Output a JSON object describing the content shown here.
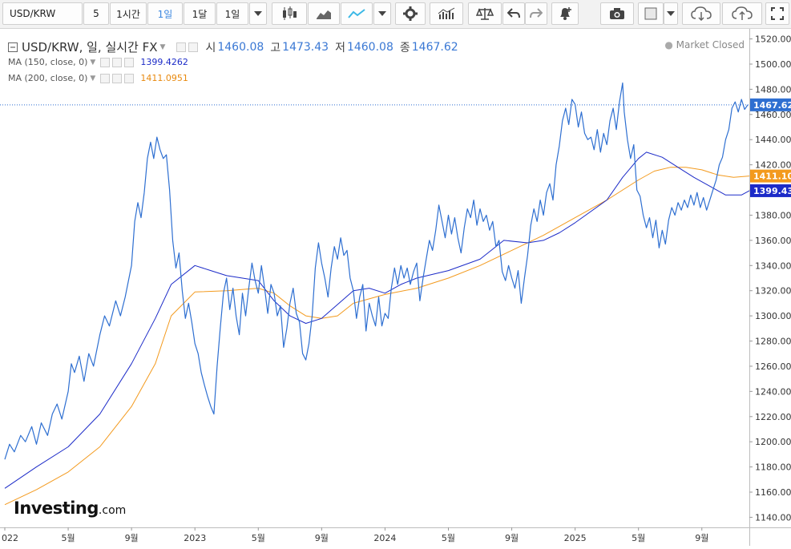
{
  "toolbar": {
    "symbol": "USD/KRW",
    "interval_5": "5",
    "interval_1h": "1시간",
    "interval_1d": "1일",
    "interval_1mo": "1달",
    "range": "1일"
  },
  "legend": {
    "title": "USD/KRW, 일, 실시간 FX",
    "open_label": "시",
    "open": "1460.08",
    "high_label": "고",
    "high": "1473.43",
    "low_label": "저",
    "low": "1460.08",
    "close_label": "종",
    "close": "1467.62",
    "market_status": "Market Closed",
    "ma150_label": "MA (150, close, 0)",
    "ma150_value": "1399.4262",
    "ma200_label": "MA (200, close, 0)",
    "ma200_value": "1411.0951"
  },
  "colors": {
    "price": "#2e6fd1",
    "ma150": "#1c2bc8",
    "ma200": "#f39a1e",
    "price_tag": "#2e6fd1",
    "ma200_tag": "#f39a1e",
    "ma150_tag": "#1c2bc8"
  },
  "logo": {
    "brand": "Investing",
    "suffix": ".com"
  },
  "chart_data": {
    "type": "line",
    "title": "USD/KRW, 일, 실시간 FX",
    "ylim": [
      1132,
      1528
    ],
    "y_ticks": [
      1140,
      1160,
      1180,
      1200,
      1220,
      1240,
      1260,
      1280,
      1300,
      1320,
      1340,
      1360,
      1380,
      1400,
      1420,
      1440,
      1460,
      1480,
      1500,
      1520
    ],
    "x_ticks": [
      {
        "t": 0,
        "label": "022"
      },
      {
        "t": 4,
        "label": "5월"
      },
      {
        "t": 8,
        "label": "9월"
      },
      {
        "t": 12,
        "label": "2023"
      },
      {
        "t": 16,
        "label": "5월"
      },
      {
        "t": 20,
        "label": "9월"
      },
      {
        "t": 24,
        "label": "2024"
      },
      {
        "t": 28,
        "label": "5월"
      },
      {
        "t": 32,
        "label": "9월"
      },
      {
        "t": 36,
        "label": "2025"
      },
      {
        "t": 40,
        "label": "5월"
      },
      {
        "t": 44,
        "label": "9월"
      }
    ],
    "xlim": [
      0,
      47.3
    ],
    "last_close_tag": "1467.62",
    "ma200_tag": "1411.10",
    "ma150_tag": "1399.43",
    "series": [
      {
        "name": "USD/KRW",
        "points": [
          [
            0,
            1186
          ],
          [
            0.3,
            1198
          ],
          [
            0.6,
            1192
          ],
          [
            1,
            1205
          ],
          [
            1.3,
            1200
          ],
          [
            1.7,
            1212
          ],
          [
            2,
            1198
          ],
          [
            2.3,
            1215
          ],
          [
            2.7,
            1205
          ],
          [
            3,
            1222
          ],
          [
            3.3,
            1230
          ],
          [
            3.6,
            1218
          ],
          [
            4,
            1240
          ],
          [
            4.2,
            1262
          ],
          [
            4.4,
            1255
          ],
          [
            4.7,
            1268
          ],
          [
            5,
            1248
          ],
          [
            5.3,
            1270
          ],
          [
            5.6,
            1260
          ],
          [
            6,
            1285
          ],
          [
            6.3,
            1300
          ],
          [
            6.6,
            1292
          ],
          [
            7,
            1312
          ],
          [
            7.3,
            1300
          ],
          [
            7.6,
            1315
          ],
          [
            8,
            1340
          ],
          [
            8.2,
            1375
          ],
          [
            8.4,
            1390
          ],
          [
            8.6,
            1378
          ],
          [
            8.8,
            1398
          ],
          [
            9,
            1425
          ],
          [
            9.2,
            1438
          ],
          [
            9.4,
            1425
          ],
          [
            9.6,
            1442
          ],
          [
            9.8,
            1432
          ],
          [
            10,
            1425
          ],
          [
            10.2,
            1428
          ],
          [
            10.4,
            1400
          ],
          [
            10.6,
            1360
          ],
          [
            10.8,
            1338
          ],
          [
            11,
            1350
          ],
          [
            11.2,
            1320
          ],
          [
            11.4,
            1298
          ],
          [
            11.6,
            1310
          ],
          [
            11.8,
            1295
          ],
          [
            12,
            1278
          ],
          [
            12.2,
            1270
          ],
          [
            12.4,
            1255
          ],
          [
            12.6,
            1245
          ],
          [
            12.8,
            1236
          ],
          [
            13,
            1228
          ],
          [
            13.2,
            1222
          ],
          [
            13.4,
            1260
          ],
          [
            13.6,
            1290
          ],
          [
            13.8,
            1318
          ],
          [
            14,
            1330
          ],
          [
            14.2,
            1305
          ],
          [
            14.4,
            1322
          ],
          [
            14.6,
            1300
          ],
          [
            14.8,
            1285
          ],
          [
            15,
            1318
          ],
          [
            15.2,
            1300
          ],
          [
            15.4,
            1322
          ],
          [
            15.6,
            1342
          ],
          [
            15.8,
            1328
          ],
          [
            16,
            1318
          ],
          [
            16.2,
            1340
          ],
          [
            16.4,
            1322
          ],
          [
            16.6,
            1302
          ],
          [
            16.8,
            1325
          ],
          [
            17,
            1318
          ],
          [
            17.2,
            1300
          ],
          [
            17.4,
            1308
          ],
          [
            17.6,
            1275
          ],
          [
            17.8,
            1290
          ],
          [
            18,
            1310
          ],
          [
            18.2,
            1322
          ],
          [
            18.4,
            1302
          ],
          [
            18.6,
            1295
          ],
          [
            18.8,
            1270
          ],
          [
            19,
            1265
          ],
          [
            19.2,
            1278
          ],
          [
            19.4,
            1300
          ],
          [
            19.6,
            1338
          ],
          [
            19.8,
            1358
          ],
          [
            20,
            1342
          ],
          [
            20.2,
            1330
          ],
          [
            20.4,
            1315
          ],
          [
            20.6,
            1338
          ],
          [
            20.8,
            1355
          ],
          [
            21,
            1345
          ],
          [
            21.2,
            1362
          ],
          [
            21.4,
            1348
          ],
          [
            21.6,
            1352
          ],
          [
            21.8,
            1330
          ],
          [
            22,
            1320
          ],
          [
            22.2,
            1298
          ],
          [
            22.4,
            1315
          ],
          [
            22.6,
            1325
          ],
          [
            22.8,
            1288
          ],
          [
            23,
            1310
          ],
          [
            23.2,
            1300
          ],
          [
            23.4,
            1292
          ],
          [
            23.6,
            1315
          ],
          [
            23.8,
            1292
          ],
          [
            24,
            1302
          ],
          [
            24.2,
            1298
          ],
          [
            24.4,
            1322
          ],
          [
            24.6,
            1338
          ],
          [
            24.8,
            1325
          ],
          [
            25,
            1340
          ],
          [
            25.2,
            1330
          ],
          [
            25.4,
            1338
          ],
          [
            25.6,
            1325
          ],
          [
            25.8,
            1335
          ],
          [
            26,
            1342
          ],
          [
            26.2,
            1312
          ],
          [
            26.4,
            1330
          ],
          [
            26.6,
            1345
          ],
          [
            26.8,
            1360
          ],
          [
            27,
            1352
          ],
          [
            27.2,
            1368
          ],
          [
            27.4,
            1388
          ],
          [
            27.6,
            1375
          ],
          [
            27.8,
            1362
          ],
          [
            28,
            1380
          ],
          [
            28.2,
            1365
          ],
          [
            28.4,
            1378
          ],
          [
            28.6,
            1362
          ],
          [
            28.8,
            1350
          ],
          [
            29,
            1370
          ],
          [
            29.2,
            1385
          ],
          [
            29.4,
            1378
          ],
          [
            29.6,
            1392
          ],
          [
            29.8,
            1372
          ],
          [
            30,
            1385
          ],
          [
            30.2,
            1375
          ],
          [
            30.4,
            1380
          ],
          [
            30.6,
            1368
          ],
          [
            30.8,
            1375
          ],
          [
            31,
            1355
          ],
          [
            31.2,
            1360
          ],
          [
            31.4,
            1335
          ],
          [
            31.6,
            1328
          ],
          [
            31.8,
            1340
          ],
          [
            32,
            1330
          ],
          [
            32.2,
            1322
          ],
          [
            32.4,
            1336
          ],
          [
            32.6,
            1310
          ],
          [
            32.8,
            1330
          ],
          [
            33,
            1348
          ],
          [
            33.2,
            1372
          ],
          [
            33.4,
            1385
          ],
          [
            33.6,
            1375
          ],
          [
            33.8,
            1392
          ],
          [
            34,
            1380
          ],
          [
            34.2,
            1398
          ],
          [
            34.4,
            1405
          ],
          [
            34.6,
            1392
          ],
          [
            34.8,
            1420
          ],
          [
            35,
            1435
          ],
          [
            35.2,
            1455
          ],
          [
            35.4,
            1465
          ],
          [
            35.6,
            1452
          ],
          [
            35.8,
            1472
          ],
          [
            36,
            1468
          ],
          [
            36.2,
            1450
          ],
          [
            36.4,
            1462
          ],
          [
            36.6,
            1445
          ],
          [
            36.8,
            1440
          ],
          [
            37,
            1442
          ],
          [
            37.2,
            1432
          ],
          [
            37.4,
            1448
          ],
          [
            37.6,
            1430
          ],
          [
            37.8,
            1445
          ],
          [
            38,
            1436
          ],
          [
            38.2,
            1455
          ],
          [
            38.4,
            1465
          ],
          [
            38.6,
            1448
          ],
          [
            38.8,
            1470
          ],
          [
            39,
            1485
          ],
          [
            39.1,
            1462
          ],
          [
            39.3,
            1440
          ],
          [
            39.5,
            1425
          ],
          [
            39.7,
            1436
          ],
          [
            39.9,
            1400
          ],
          [
            40.1,
            1395
          ],
          [
            40.3,
            1380
          ],
          [
            40.5,
            1370
          ],
          [
            40.7,
            1378
          ],
          [
            40.9,
            1362
          ],
          [
            41.1,
            1376
          ],
          [
            41.3,
            1354
          ],
          [
            41.5,
            1368
          ],
          [
            41.7,
            1357
          ],
          [
            41.9,
            1376
          ],
          [
            42.1,
            1386
          ],
          [
            42.3,
            1380
          ],
          [
            42.5,
            1390
          ],
          [
            42.7,
            1384
          ],
          [
            42.9,
            1392
          ],
          [
            43.1,
            1386
          ],
          [
            43.3,
            1396
          ],
          [
            43.5,
            1388
          ],
          [
            43.7,
            1398
          ],
          [
            43.9,
            1386
          ],
          [
            44.1,
            1394
          ],
          [
            44.3,
            1384
          ],
          [
            44.5,
            1392
          ],
          [
            44.7,
            1400
          ],
          [
            44.9,
            1408
          ],
          [
            45.1,
            1420
          ],
          [
            45.3,
            1426
          ],
          [
            45.5,
            1440
          ],
          [
            45.7,
            1448
          ],
          [
            45.9,
            1465
          ],
          [
            46.1,
            1470
          ],
          [
            46.3,
            1462
          ],
          [
            46.5,
            1472
          ],
          [
            46.7,
            1464
          ],
          [
            46.9,
            1467.62
          ]
        ]
      },
      {
        "name": "MA (150, close, 0)",
        "points": [
          [
            0,
            1163
          ],
          [
            2,
            1180
          ],
          [
            4,
            1196
          ],
          [
            6,
            1222
          ],
          [
            8,
            1262
          ],
          [
            9.5,
            1298
          ],
          [
            10.5,
            1325
          ],
          [
            12,
            1340
          ],
          [
            13,
            1336
          ],
          [
            14,
            1332
          ],
          [
            16,
            1328
          ],
          [
            17,
            1312
          ],
          [
            18,
            1300
          ],
          [
            19,
            1294
          ],
          [
            20,
            1298
          ],
          [
            22,
            1320
          ],
          [
            23,
            1322
          ],
          [
            24,
            1318
          ],
          [
            25,
            1325
          ],
          [
            26,
            1330
          ],
          [
            28,
            1336
          ],
          [
            30,
            1345
          ],
          [
            31.5,
            1360
          ],
          [
            33,
            1358
          ],
          [
            34,
            1360
          ],
          [
            35,
            1366
          ],
          [
            36,
            1374
          ],
          [
            38,
            1392
          ],
          [
            39,
            1410
          ],
          [
            40,
            1425
          ],
          [
            40.5,
            1430
          ],
          [
            41.5,
            1426
          ],
          [
            42.5,
            1418
          ],
          [
            43.5,
            1410
          ],
          [
            44.5,
            1403
          ],
          [
            45.5,
            1396
          ],
          [
            46.5,
            1396
          ],
          [
            47,
            1399.43
          ]
        ]
      },
      {
        "name": "MA (200, close, 0)",
        "points": [
          [
            0,
            1150
          ],
          [
            2,
            1162
          ],
          [
            4,
            1176
          ],
          [
            6,
            1196
          ],
          [
            8,
            1228
          ],
          [
            9.5,
            1262
          ],
          [
            10.5,
            1300
          ],
          [
            12,
            1319
          ],
          [
            14,
            1320
          ],
          [
            16,
            1322
          ],
          [
            17,
            1318
          ],
          [
            18,
            1308
          ],
          [
            19,
            1300
          ],
          [
            20,
            1298
          ],
          [
            21,
            1300
          ],
          [
            22,
            1310
          ],
          [
            24,
            1317
          ],
          [
            26,
            1322
          ],
          [
            28,
            1330
          ],
          [
            30,
            1340
          ],
          [
            32,
            1352
          ],
          [
            34,
            1364
          ],
          [
            36,
            1378
          ],
          [
            38,
            1392
          ],
          [
            40,
            1408
          ],
          [
            41,
            1415
          ],
          [
            42,
            1418
          ],
          [
            43,
            1418
          ],
          [
            44,
            1416
          ],
          [
            45,
            1412
          ],
          [
            46,
            1410
          ],
          [
            47,
            1411.1
          ]
        ]
      }
    ]
  }
}
